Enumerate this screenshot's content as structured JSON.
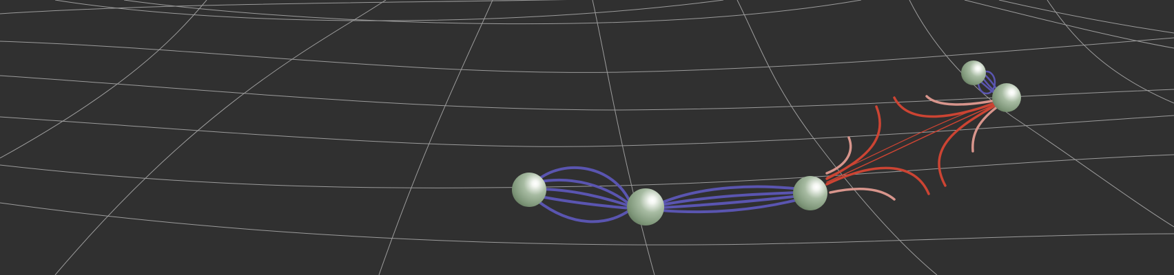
{
  "scene": {
    "description_colors": {
      "background": "#303030",
      "grid": "#b8b8b8",
      "sphere_base": "#8fa888",
      "sphere_highlight": "#ffffff",
      "field_attractive": "#5a55b0",
      "field_repulsive_strong": "#cc4433",
      "field_repulsive_light": "#d8958c"
    },
    "elements": [
      {
        "name": "sphere-1",
        "kind": "particle"
      },
      {
        "name": "sphere-2",
        "kind": "particle"
      },
      {
        "name": "sphere-3",
        "kind": "particle"
      },
      {
        "name": "sphere-4",
        "kind": "particle"
      },
      {
        "name": "sphere-5",
        "kind": "particle"
      }
    ]
  }
}
